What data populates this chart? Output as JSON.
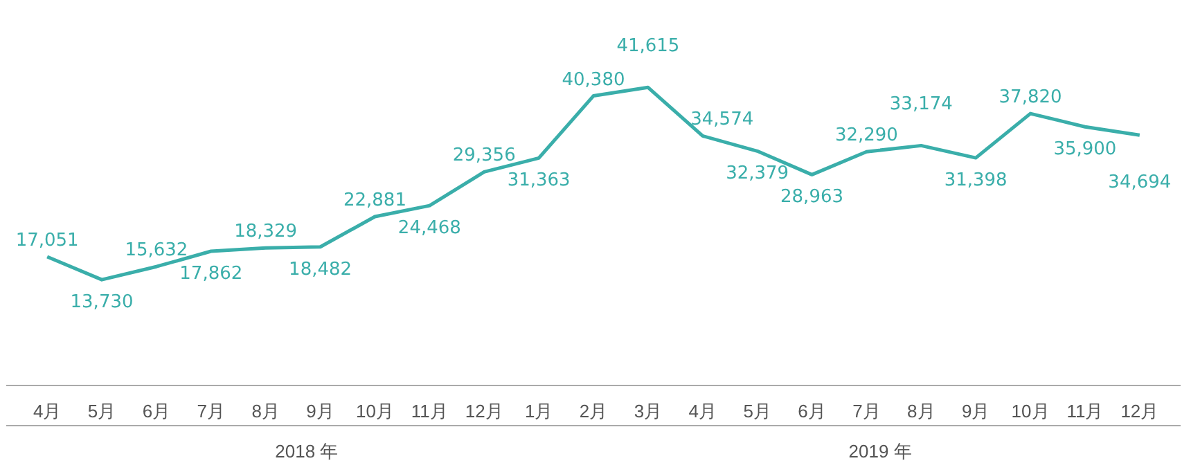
{
  "chart_data": {
    "type": "line",
    "categories": [
      "4月",
      "5月",
      "6月",
      "7月",
      "8月",
      "9月",
      "10月",
      "11月",
      "12月",
      "1月",
      "2月",
      "3月",
      "4月",
      "5月",
      "6月",
      "7月",
      "8月",
      "9月",
      "10月",
      "11月",
      "12月"
    ],
    "series": [
      {
        "color": "#3aaeaa",
        "values": [
          17051,
          13730,
          15632,
          17862,
          18329,
          18482,
          22881,
          24468,
          29356,
          31363,
          40380,
          41615,
          34574,
          32379,
          28963,
          32290,
          33174,
          31398,
          37820,
          35900,
          34694
        ],
        "value_labels": [
          "17,051",
          "13,730",
          "15,632",
          "17,862",
          "18,329",
          "18,482",
          "22,881",
          "24,468",
          "29,356",
          "31,363",
          "40,380",
          "41,615",
          "34,574",
          "32,379",
          "28,963",
          "32,290",
          "33,174",
          "31,398",
          "37,820",
          "35,900",
          "34,694"
        ]
      }
    ],
    "grid": false,
    "marker": "none",
    "line_style": "solid",
    "tick_labels": "x",
    "annotations": [
      "2018 年",
      "2019 年"
    ]
  }
}
